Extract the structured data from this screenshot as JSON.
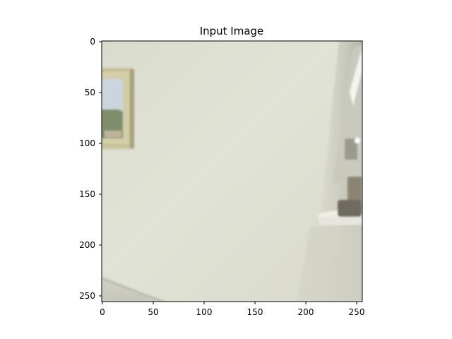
{
  "figure": {
    "title": "Input Image"
  },
  "axes": {
    "x_ticks": [
      "0",
      "50",
      "100",
      "150",
      "200",
      "250"
    ],
    "y_ticks": [
      "0",
      "50",
      "100",
      "150",
      "200",
      "250"
    ]
  },
  "image": {
    "description_colors": {
      "wall": "#dfe1d4",
      "frame": "#cfc8a6",
      "shadow": "#b8b6a8"
    }
  }
}
